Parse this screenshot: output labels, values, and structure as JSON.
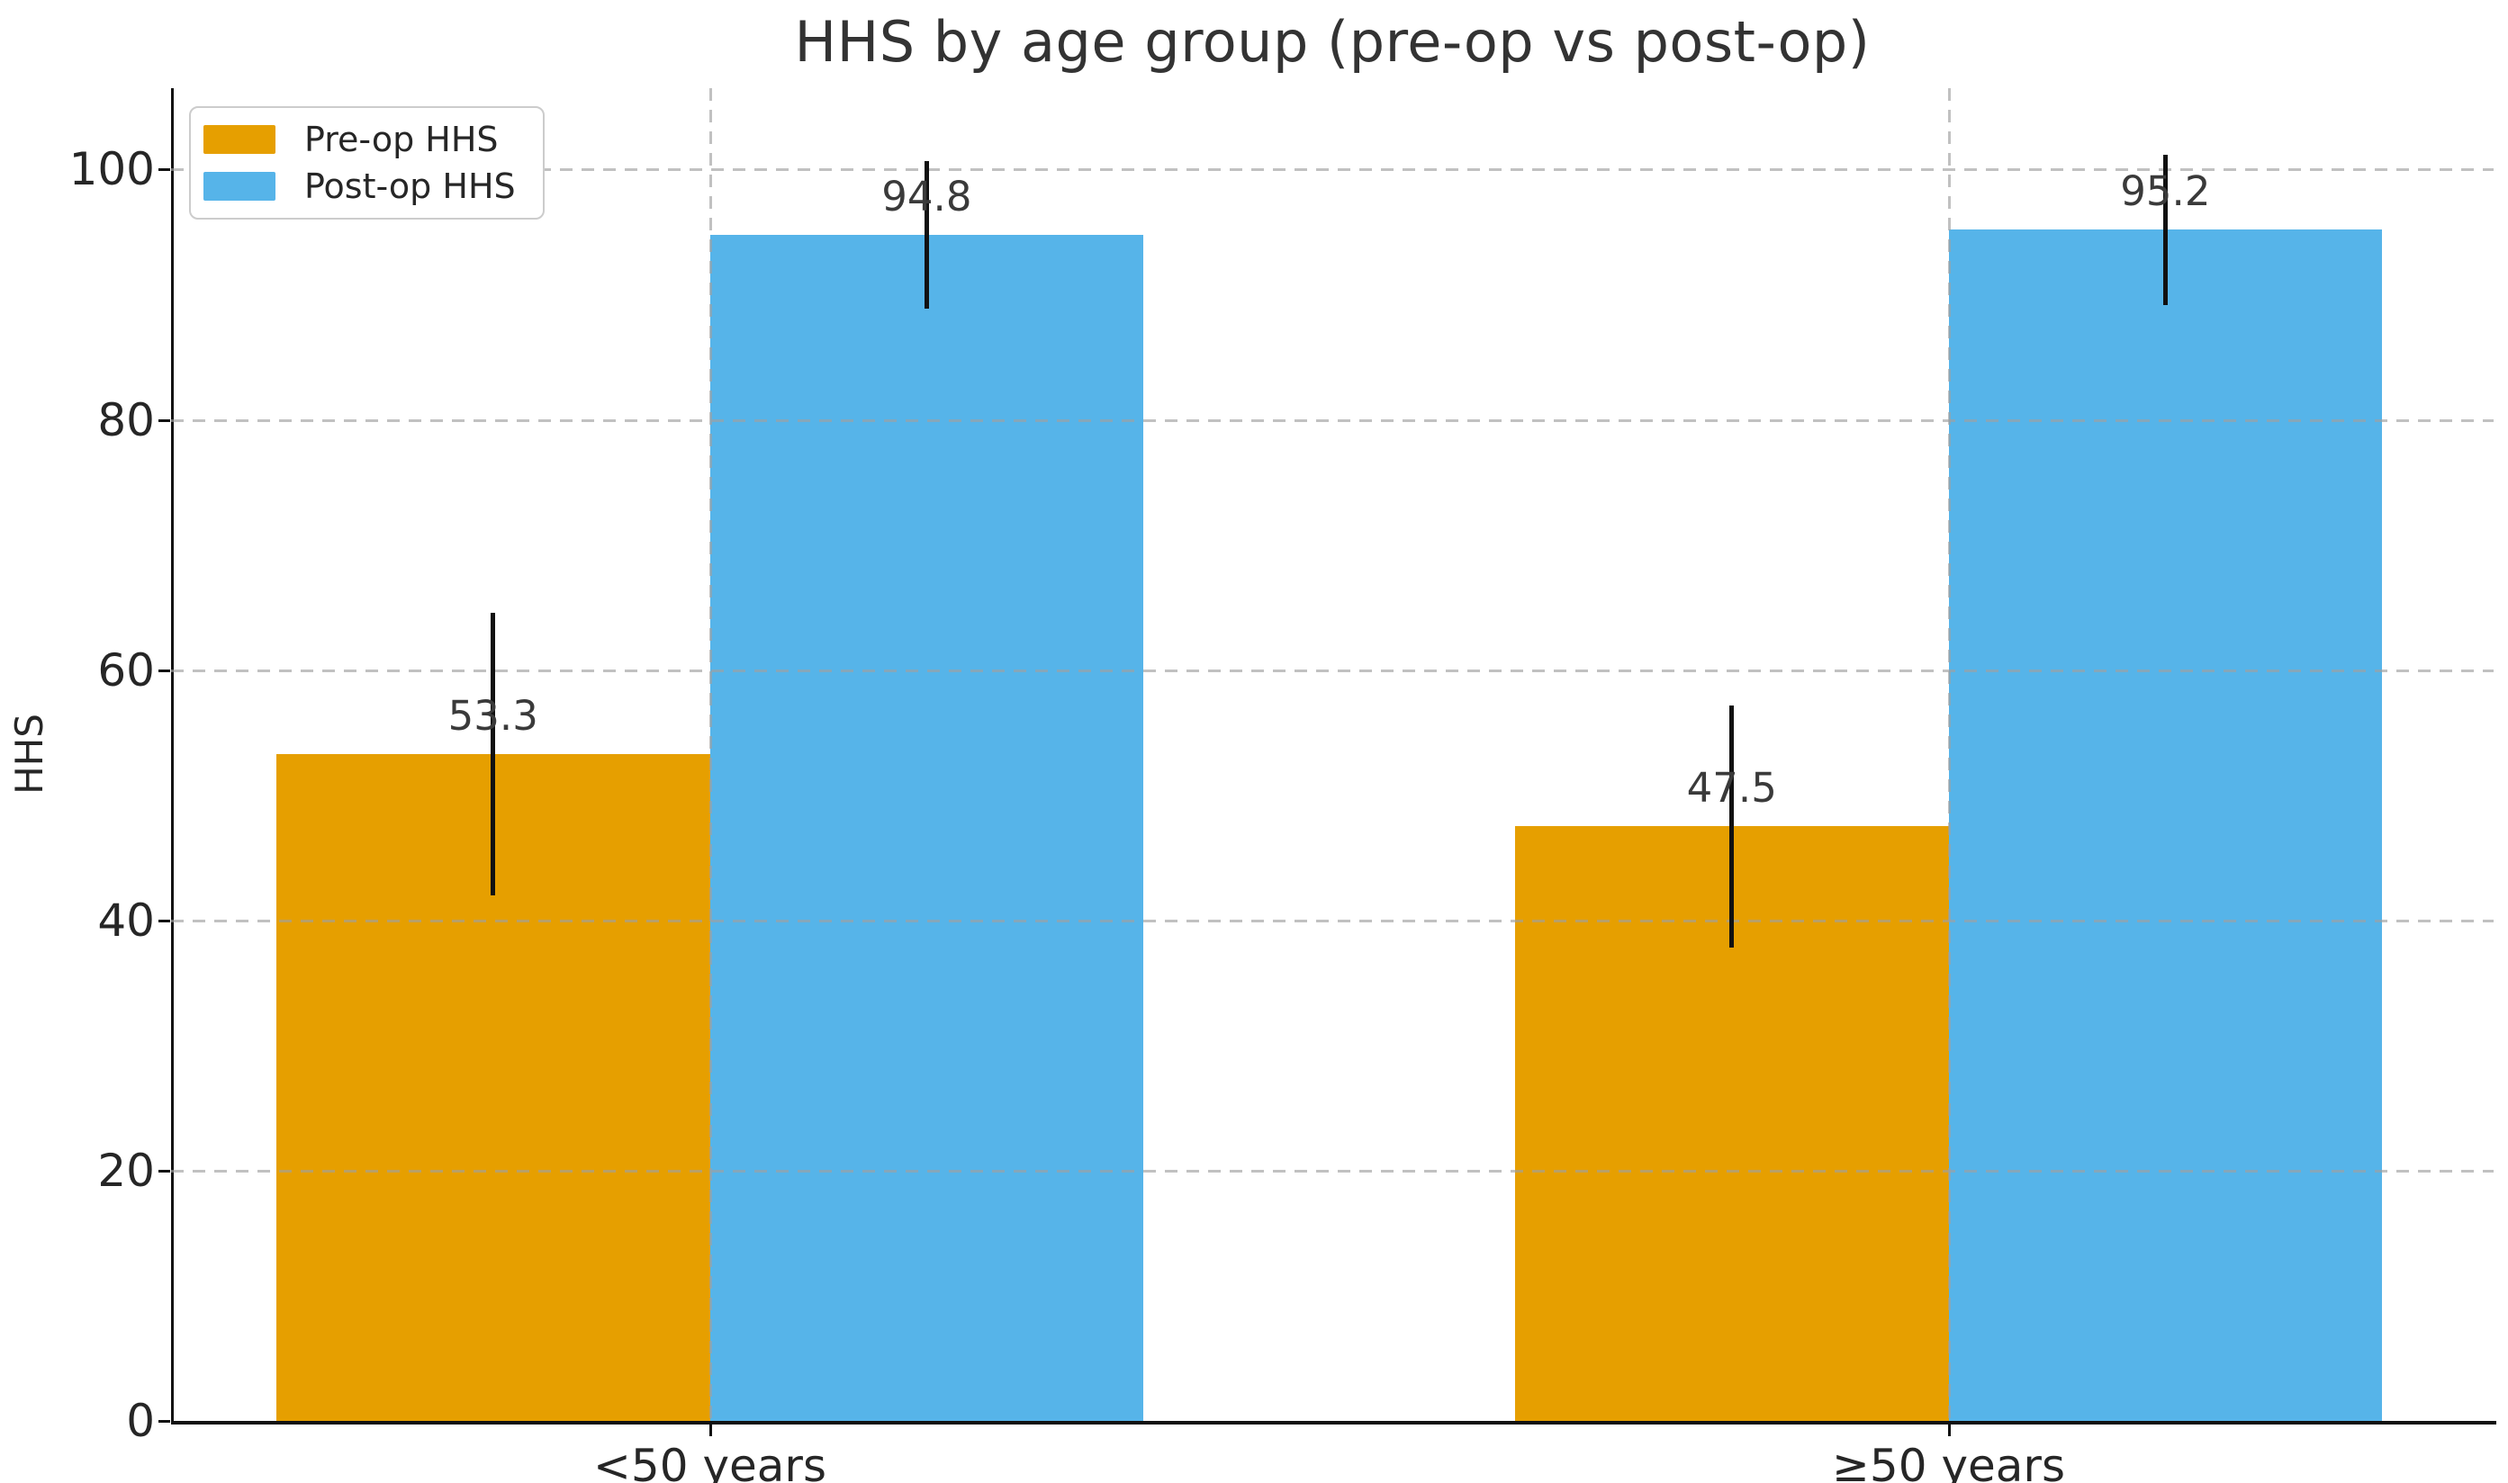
{
  "chart_data": {
    "type": "bar",
    "title": "HHS by age group (pre-op vs post-op)",
    "categories": [
      "<50 years",
      "≥50 years"
    ],
    "series": [
      {
        "name": "Pre-op HHS",
        "color": "#E69F00",
        "values": [
          53.3,
          47.5
        ],
        "errors": [
          11.3,
          9.7
        ],
        "value_labels": [
          "53.3",
          "47.5"
        ]
      },
      {
        "name": "Post-op HHS",
        "color": "#56B4E9",
        "values": [
          94.8,
          95.2
        ],
        "errors": [
          5.9,
          6.0
        ],
        "value_labels": [
          "94.8",
          "95.2"
        ]
      }
    ],
    "xlabel": "",
    "ylabel": "HHS",
    "yticks": [
      0,
      20,
      40,
      60,
      80,
      100
    ],
    "ylim": [
      0,
      106.5
    ],
    "grid": {
      "style": "dashed",
      "horizontal": true,
      "vertical": true
    },
    "legend": {
      "position": "upper-left"
    },
    "colors": {
      "error_bar": "#111111",
      "grid": "#c1c1c1",
      "tick_text": "#262626",
      "title_text": "#333333",
      "spine": "#111111"
    }
  }
}
